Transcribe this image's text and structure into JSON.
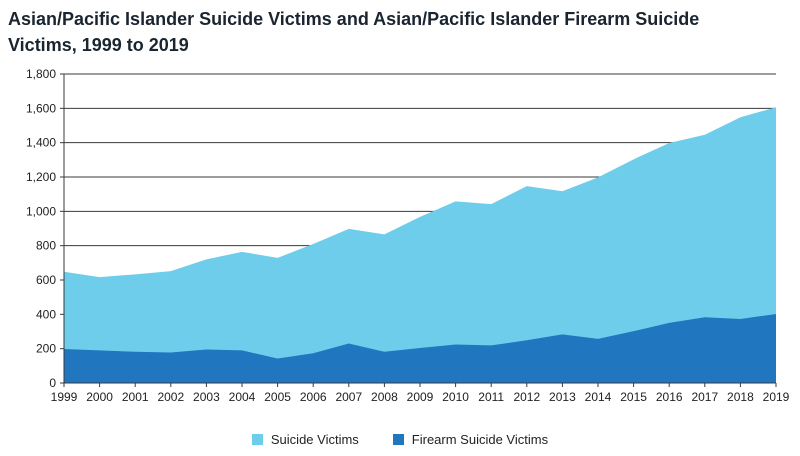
{
  "chart_data": {
    "type": "area",
    "title": "Asian/Pacific Islander Suicide Victims and Asian/Pacific Islander Firearm Suicide Victims, 1999 to 2019",
    "xlabel": "",
    "ylabel": "",
    "x": [
      "1999",
      "2000",
      "2001",
      "2002",
      "2003",
      "2004",
      "2005",
      "2006",
      "2007",
      "2008",
      "2009",
      "2010",
      "2011",
      "2012",
      "2013",
      "2014",
      "2015",
      "2016",
      "2017",
      "2018",
      "2019"
    ],
    "ylim": [
      0,
      1800
    ],
    "yticks": [
      0,
      200,
      400,
      600,
      800,
      1000,
      1200,
      1400,
      1600,
      1800
    ],
    "ytick_labels": [
      "0",
      "200",
      "400",
      "600",
      "800",
      "1,000",
      "1,200",
      "1,400",
      "1,600",
      "1,800"
    ],
    "grid": true,
    "legend_position": "bottom",
    "series": [
      {
        "name": "Suicide Victims",
        "color": "#6ecdeb",
        "values": [
          648,
          617,
          633,
          652,
          720,
          764,
          729,
          810,
          898,
          866,
          968,
          1058,
          1042,
          1147,
          1117,
          1198,
          1303,
          1398,
          1446,
          1548,
          1606
        ]
      },
      {
        "name": "Firearm Suicide Victims",
        "color": "#2176c0",
        "values": [
          198,
          190,
          182,
          178,
          195,
          190,
          143,
          173,
          230,
          182,
          204,
          224,
          219,
          249,
          283,
          257,
          302,
          350,
          383,
          373,
          402
        ]
      }
    ]
  }
}
